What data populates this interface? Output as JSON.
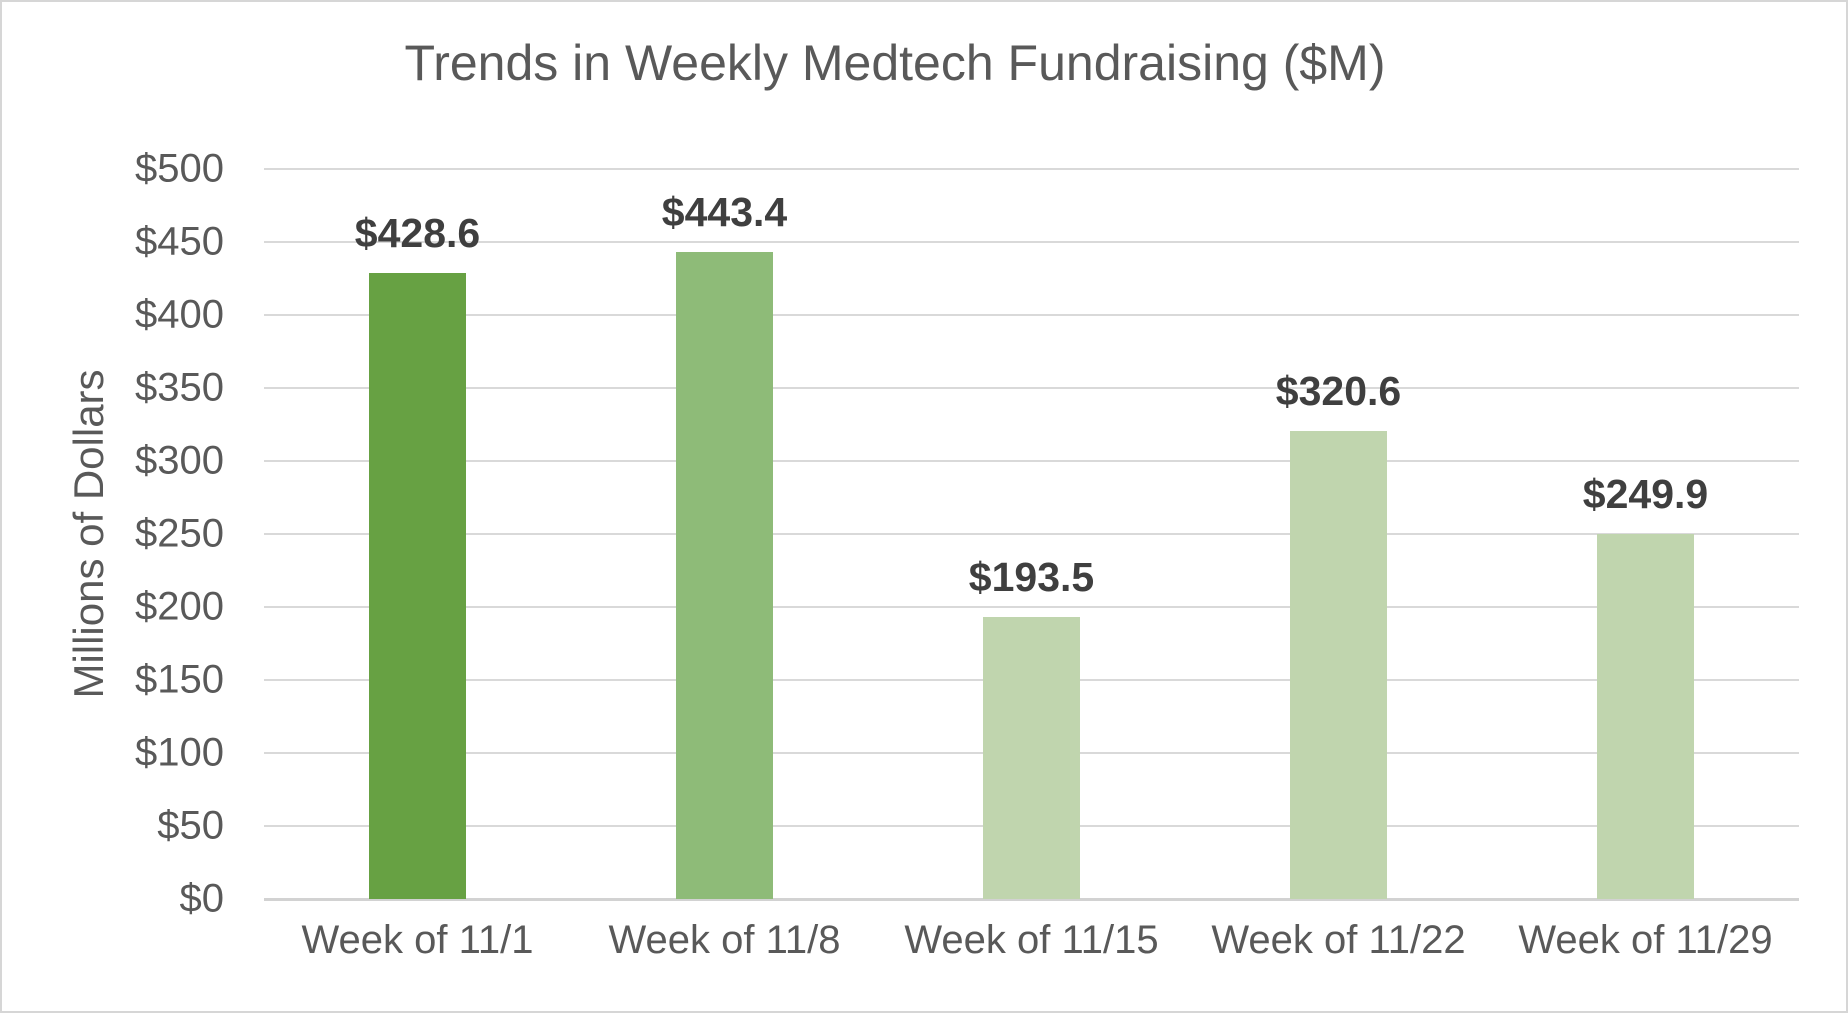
{
  "chart_data": {
    "type": "bar",
    "title": "Trends in Weekly Medtech Fundraising ($M)",
    "xlabel": "",
    "ylabel": "Millions of Dollars",
    "categories": [
      "Week of 11/1",
      "Week of 11/8",
      "Week of 11/15",
      "Week of 11/22",
      "Week of 11/29"
    ],
    "values": [
      428.6,
      443.4,
      193.5,
      320.6,
      249.9
    ],
    "data_labels": [
      "$428.6",
      "$443.4",
      "$193.5",
      "$320.6",
      "$249.9"
    ],
    "bar_colors": [
      "#67a143",
      "#8ebb78",
      "#c0d5ae",
      "#c0d5ae",
      "#c0d5ae"
    ],
    "ylim": [
      0,
      500
    ],
    "ytick_step": 50,
    "ytick_labels": [
      "$0",
      "$50",
      "$100",
      "$150",
      "$200",
      "$250",
      "$300",
      "$350",
      "$400",
      "$450",
      "$500"
    ],
    "grid": true,
    "legend_position": "none",
    "colors": {
      "title_text": "#595959",
      "tick_text": "#595959",
      "data_label_text": "#3f3f3f",
      "gridline": "#d9d9d9",
      "axis_line": "#d2d2d2",
      "background": "#ffffff",
      "frame_border": "#d6d6d6"
    }
  }
}
